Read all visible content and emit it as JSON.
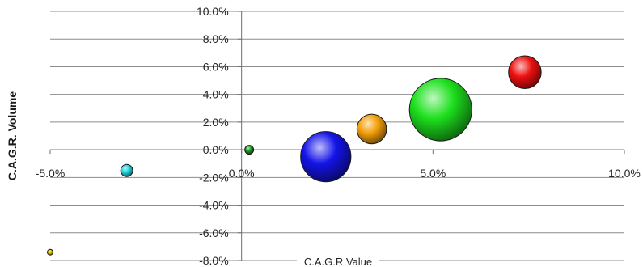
{
  "chart_data": {
    "type": "bubble",
    "xlabel": "C.A.G.R Value",
    "ylabel": "C.A.G.R. Volume",
    "xlim": [
      -5.0,
      10.0
    ],
    "ylim": [
      -8.0,
      10.0
    ],
    "x_ticks": [
      -5.0,
      0.0,
      5.0,
      10.0
    ],
    "y_ticks": [
      -8.0,
      -6.0,
      -4.0,
      -2.0,
      0.0,
      2.0,
      4.0,
      6.0,
      8.0,
      10.0
    ],
    "x_tick_labels": [
      "-5.0%",
      "0.0%",
      "5.0%",
      "10.0%"
    ],
    "y_tick_labels": [
      "-8.0%",
      "-6.0%",
      "-4.0%",
      "-2.0%",
      "0.0%",
      "2.0%",
      "4.0%",
      "6.0%",
      "8.0%",
      "10.0%"
    ],
    "grid": "horizontal",
    "legend": "none",
    "points": [
      {
        "x": -5.0,
        "y": -7.4,
        "size": 0.3,
        "color": "#e8c400"
      },
      {
        "x": -3.0,
        "y": -1.5,
        "size": 1.5,
        "color": "#1fd6e0"
      },
      {
        "x": 0.2,
        "y": 0.0,
        "size": 0.8,
        "color": "#1a9a1a"
      },
      {
        "x": 2.2,
        "y": -0.5,
        "size": 26,
        "color": "#1414e8"
      },
      {
        "x": 3.4,
        "y": 1.5,
        "size": 9,
        "color": "#f5a00a"
      },
      {
        "x": 5.2,
        "y": 2.9,
        "size": 40,
        "color": "#1ee01e"
      },
      {
        "x": 7.4,
        "y": 5.6,
        "size": 11,
        "color": "#ee1010"
      }
    ]
  }
}
